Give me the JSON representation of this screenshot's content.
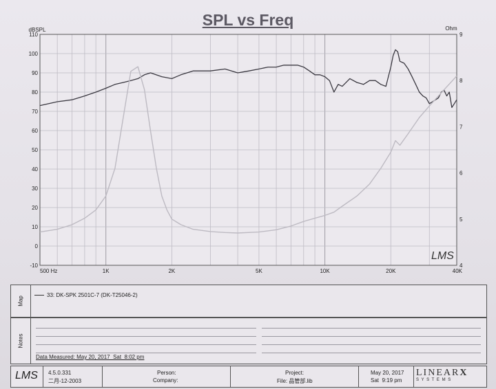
{
  "chart_data": {
    "type": "line",
    "title": "SPL vs Freq",
    "y_left_unit": "dBSPL",
    "y_right_unit": "Ohm",
    "x_scale": "log",
    "xlim": [
      500,
      40000
    ],
    "ylim_left": [
      -10,
      110
    ],
    "ylim_right": [
      4,
      9
    ],
    "y_left_ticks": [
      110,
      100,
      90,
      80,
      70,
      60,
      50,
      40,
      30,
      20,
      10,
      0,
      -10
    ],
    "y_right_ticks": [
      9,
      8,
      7,
      6,
      5,
      4
    ],
    "x_tick_labels": [
      {
        "value": 500,
        "label": "500  Hz"
      },
      {
        "value": 1000,
        "label": "1K"
      },
      {
        "value": 2000,
        "label": "2K"
      },
      {
        "value": 5000,
        "label": "5K"
      },
      {
        "value": 10000,
        "label": "10K"
      },
      {
        "value": 20000,
        "label": "20K"
      },
      {
        "value": 40000,
        "label": "40K"
      }
    ],
    "grid": true,
    "series": [
      {
        "name": "33: DK-SPK 2501C-7 (DK-T25046-2)",
        "axis": "left",
        "color": "#3a3840",
        "x": [
          500,
          600,
          700,
          800,
          900,
          1000,
          1100,
          1200,
          1300,
          1400,
          1500,
          1600,
          1800,
          2000,
          2200,
          2500,
          3000,
          3500,
          4000,
          4500,
          5000,
          5500,
          6000,
          6500,
          7000,
          7500,
          8000,
          8500,
          9000,
          9500,
          10000,
          10500,
          11000,
          11500,
          12000,
          13000,
          14000,
          15000,
          16000,
          17000,
          18000,
          19000,
          20000,
          20500,
          21000,
          21500,
          22000,
          23000,
          24000,
          25000,
          26000,
          27000,
          28000,
          29000,
          30000,
          31000,
          32000,
          33000,
          34000,
          35000,
          36000,
          37000,
          38000,
          39000,
          40000
        ],
        "y": [
          73,
          75,
          76,
          78,
          80,
          82,
          84,
          85,
          86,
          87,
          89,
          90,
          88,
          87,
          89,
          91,
          91,
          92,
          90,
          91,
          92,
          93,
          93,
          94,
          94,
          94,
          93,
          91,
          89,
          89,
          88,
          86,
          80,
          84,
          83,
          87,
          85,
          84,
          86,
          86,
          84,
          83,
          93,
          99,
          102,
          101,
          96,
          95,
          92,
          88,
          84,
          80,
          78,
          77,
          74,
          75,
          76,
          77,
          80,
          81,
          78,
          80,
          72,
          74,
          76
        ]
      },
      {
        "name": "",
        "axis": "right",
        "color": "#bdbac2",
        "x": [
          500,
          600,
          700,
          800,
          900,
          1000,
          1100,
          1200,
          1300,
          1400,
          1500,
          1600,
          1700,
          1800,
          1900,
          2000,
          2200,
          2500,
          3000,
          3500,
          4000,
          5000,
          6000,
          7000,
          8000,
          9000,
          10000,
          11000,
          12000,
          14000,
          16000,
          18000,
          20000,
          21000,
          22000,
          24000,
          27000,
          30000,
          35000,
          40000
        ],
        "y": [
          4.72,
          4.78,
          4.88,
          5.02,
          5.2,
          5.5,
          6.1,
          7.2,
          8.2,
          8.3,
          7.8,
          6.9,
          6.1,
          5.5,
          5.2,
          5.0,
          4.88,
          4.78,
          4.73,
          4.71,
          4.7,
          4.72,
          4.77,
          4.85,
          4.95,
          5.02,
          5.08,
          5.15,
          5.28,
          5.5,
          5.76,
          6.1,
          6.45,
          6.7,
          6.6,
          6.85,
          7.2,
          7.45,
          7.8,
          8.1
        ]
      }
    ]
  },
  "watermark": "LMS",
  "map": {
    "tab_label": "Map",
    "legend_entry": "33: DK-SPK 2501C-7 (DK-T25046-2)"
  },
  "notes": {
    "tab_label": "Notes",
    "data_measured": "Data Measured: May 20, 2017  Sat  8:02 pm"
  },
  "footer": {
    "logo": "LMS",
    "version": "4.5.0.331",
    "version_date": "二月-12-2003",
    "person_label": "Person:",
    "company_label": "Company:",
    "project_label": "Project:",
    "file_label": "File: 品管部.lib",
    "date": "May 20, 2017",
    "time": "Sat  9:19 pm",
    "brand": "LINEAR",
    "brand_x": "X",
    "brand_sub": "S Y S T E M S"
  }
}
